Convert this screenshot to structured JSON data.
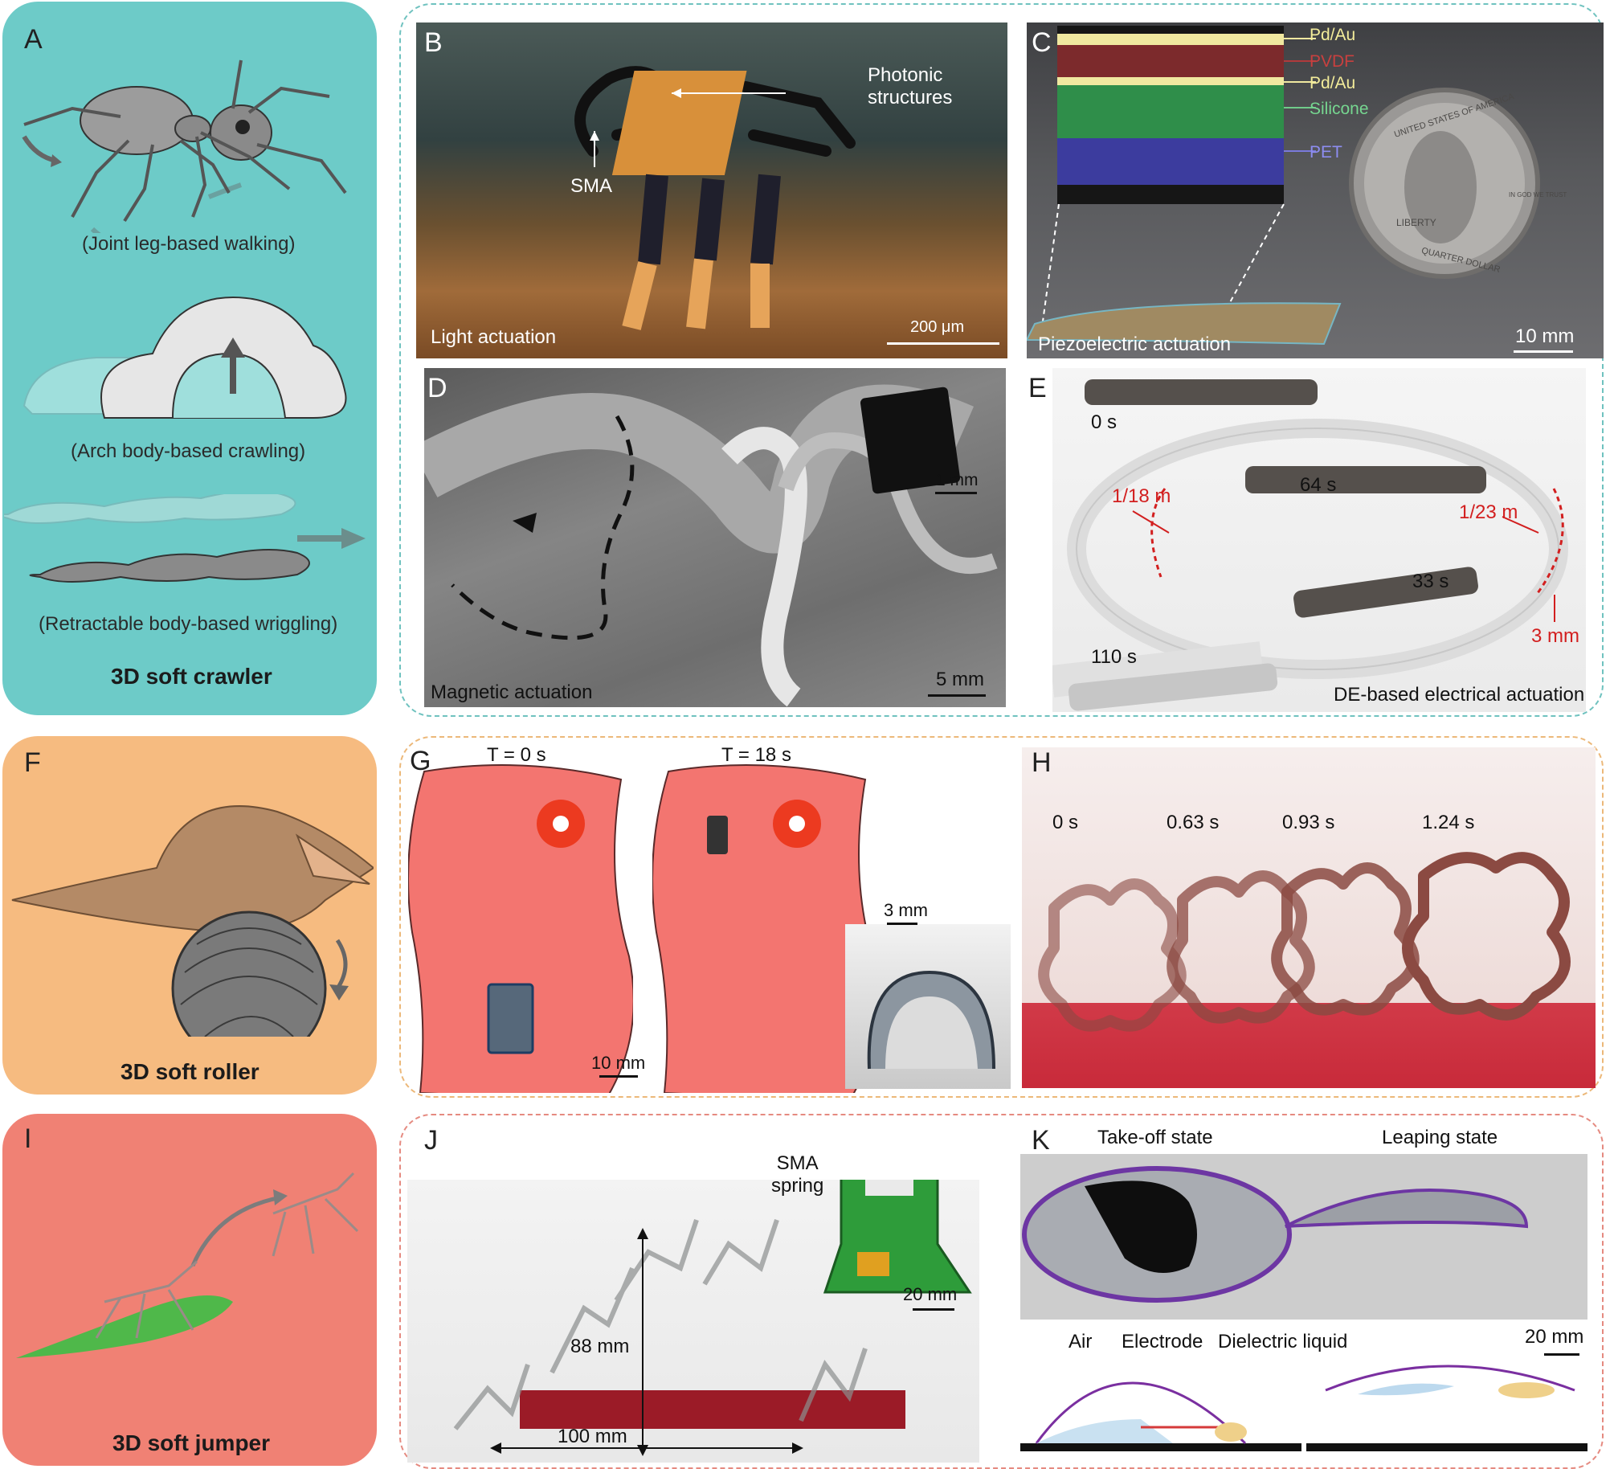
{
  "row1": {
    "letter_a": "A",
    "caption_walking": "(Joint leg-based walking)",
    "caption_crawling": "(Arch body-based crawling)",
    "caption_wriggling": "(Retractable body-based wriggling)",
    "title": "3D soft crawler",
    "panel_b": {
      "letter": "B",
      "label_photonic": "Photonic\nstructures",
      "label_sma": "SMA",
      "mode": "Light actuation",
      "scale": "200 μm"
    },
    "panel_c": {
      "letter": "C",
      "layers": [
        "Pd/Au",
        "PVDF",
        "Pd/Au",
        "Silicone",
        "PET"
      ],
      "mode": "Piezoelectric actuation",
      "scale": "10 mm",
      "coin_text": [
        "UNITED STATES OF AMERICA",
        "LIBERTY",
        "QUARTER DOLLAR",
        "IN GOD WE TRUST"
      ]
    },
    "panel_d": {
      "letter": "D",
      "scale_inset": "1 mm",
      "mode": "Magnetic actuation",
      "scale": "5 mm"
    },
    "panel_e": {
      "letter": "E",
      "times": [
        "0 s",
        "64 s",
        "33 s",
        "110 s"
      ],
      "curv_1": "1/18 m",
      "curv_2": "1/23 m",
      "height": "3 mm",
      "mode": "DE-based electrical actuation"
    }
  },
  "row2": {
    "letter_f": "F",
    "title": "3D soft roller",
    "panel_g": {
      "letter": "G",
      "time_1": "T = 0 s",
      "time_2": "T = 18 s",
      "scale_1": "10 mm",
      "scale_2": "3 mm"
    },
    "panel_h": {
      "letter": "H",
      "times": [
        "0 s",
        "0.63 s",
        "0.93 s",
        "1.24 s"
      ]
    }
  },
  "row3": {
    "letter_i": "I",
    "title": "3D soft jumper",
    "panel_j": {
      "letter": "J",
      "label_sma": "SMA\nspring",
      "height": "88 mm",
      "distance": "100 mm",
      "scale": "20 mm"
    },
    "panel_k": {
      "letter": "K",
      "state_1": "Take-off state",
      "state_2": "Leaping state",
      "label_air": "Air",
      "label_electrode": "Electrode",
      "label_liquid": "Dielectric liquid",
      "scale": "20 mm"
    }
  },
  "colors": {
    "crawler_bg": "#6dcbc8",
    "roller_bg": "#f6bb80",
    "jumper_bg": "#f08174",
    "frame_row1": "#6fc2bf",
    "frame_row2": "#ecb879",
    "frame_row3": "#e58a80",
    "annotation_red": "#d21f1f"
  },
  "icons": [
    "ant-illustration",
    "inchworm-illustration",
    "earthworm-illustration",
    "pangolin-illustration",
    "mantis-illustration"
  ]
}
